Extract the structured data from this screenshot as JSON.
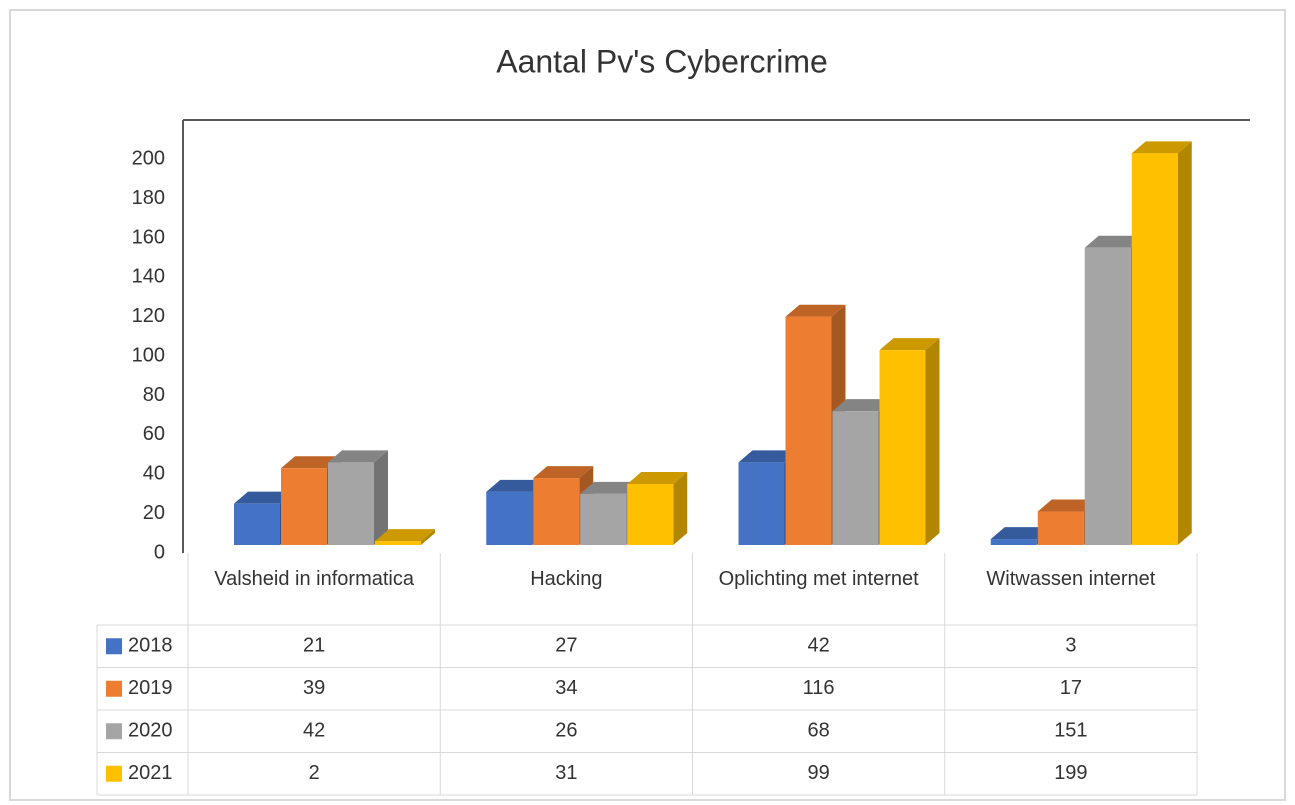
{
  "chart_data": {
    "type": "bar3d",
    "title": "Aantal Pv's Cybercrime",
    "categories": [
      "Valsheid in informatica",
      "Hacking",
      "Oplichting met internet",
      "Witwassen internet"
    ],
    "series": [
      {
        "name": "2018",
        "color": "#4472c4",
        "values": [
          21,
          27,
          42,
          3
        ]
      },
      {
        "name": "2019",
        "color": "#ed7d31",
        "values": [
          39,
          34,
          116,
          17
        ]
      },
      {
        "name": "2020",
        "color": "#a5a5a5",
        "values": [
          42,
          26,
          68,
          151
        ]
      },
      {
        "name": "2021",
        "color": "#ffc000",
        "values": [
          2,
          31,
          99,
          199
        ]
      }
    ],
    "ylim": [
      0,
      220
    ],
    "yticks": [
      0,
      20,
      40,
      60,
      80,
      100,
      120,
      140,
      160,
      180,
      200
    ],
    "grid": false,
    "data_table": true
  }
}
